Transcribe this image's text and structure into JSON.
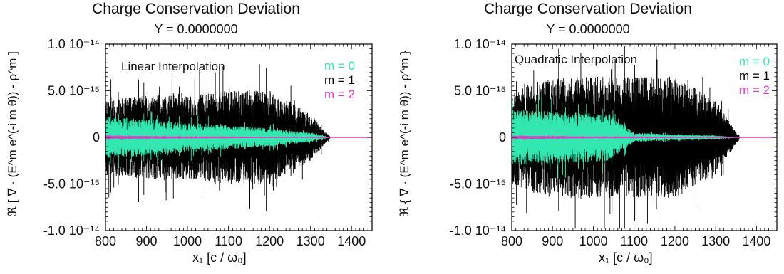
{
  "chart_data": [
    {
      "type": "area",
      "title": "Charge Conservation Deviation",
      "subtitle": "Y = 0.0000000",
      "annotation": "Linear Interpolation",
      "ylabel": "ℜ [ ∇ · (E^m e^(-i m θ)) - ρ^m ]",
      "xlabel": "x₁ [c / ω₀]",
      "xlim": [
        800,
        1450
      ],
      "ylim": [
        -1e-14,
        1e-14
      ],
      "x_ticks": [
        "800",
        "900",
        "1000",
        "1100",
        "1200",
        "1300",
        "1400"
      ],
      "y_ticks": [
        "1.0 10⁻¹⁴",
        "5.0 10⁻¹⁵",
        "0",
        "-5.0 10⁻¹⁵",
        "-1.0 10⁻¹⁴"
      ],
      "grid": false,
      "legend_position": "top-right",
      "series": [
        {
          "name": "m = 0",
          "color": "#33e8b0",
          "x": [
            800,
            900,
            1000,
            1100,
            1200,
            1300,
            1350
          ],
          "envelope": [
            2.2e-15,
            2e-15,
            1.6e-15,
            1.3e-15,
            1e-15,
            5e-16,
            0
          ]
        },
        {
          "name": "m = 1",
          "color": "#000000",
          "x": [
            800,
            900,
            1000,
            1100,
            1200,
            1300,
            1350
          ],
          "envelope": [
            4e-15,
            4.5e-15,
            4.5e-15,
            5e-15,
            5e-15,
            2.5e-15,
            0
          ]
        },
        {
          "name": "m = 2",
          "color": "#e43acb",
          "x": [
            800,
            900,
            1000,
            1100,
            1200,
            1300,
            1350
          ],
          "envelope": [
            2e-16,
            1.5e-16,
            1e-16,
            1e-16,
            5e-17,
            3e-17,
            0
          ]
        }
      ]
    },
    {
      "type": "area",
      "title": "Charge Conservation Deviation",
      "subtitle": "Y = 0.0000000",
      "annotation": "Quadratic Interpolation",
      "ylabel": "ℜ { ∇ · (E^m e^(-i m θ)) - ρ^m }",
      "xlabel": "x₁ [c / ω₀]",
      "xlim": [
        800,
        1450
      ],
      "ylim": [
        -1e-14,
        1e-14
      ],
      "x_ticks": [
        "800",
        "900",
        "1000",
        "1100",
        "1200",
        "1300",
        "1400"
      ],
      "y_ticks": [
        "1.0 10⁻¹⁴",
        "5.0 10⁻¹⁵",
        "0",
        "-5.0 10⁻¹⁵",
        "-1.0 10⁻¹⁴"
      ],
      "grid": false,
      "legend_position": "top-right",
      "series": [
        {
          "name": "m = 0",
          "color": "#33e8b0",
          "x": [
            800,
            900,
            1000,
            1040,
            1100,
            1200,
            1300,
            1360
          ],
          "envelope": [
            3e-15,
            2.8e-15,
            2.6e-15,
            2.5e-15,
            5e-16,
            3e-16,
            2e-16,
            0
          ]
        },
        {
          "name": "m = 1",
          "color": "#000000",
          "x": [
            800,
            900,
            1000,
            1100,
            1200,
            1300,
            1360
          ],
          "envelope": [
            5e-15,
            6.5e-15,
            6.5e-15,
            6.5e-15,
            6.5e-15,
            4e-15,
            0
          ]
        },
        {
          "name": "m = 2",
          "color": "#e43acb",
          "x": [
            800,
            900,
            1000,
            1100,
            1200,
            1300,
            1360
          ],
          "envelope": [
            2e-16,
            1.5e-16,
            1e-16,
            1e-16,
            5e-17,
            3e-17,
            0
          ]
        }
      ]
    }
  ]
}
